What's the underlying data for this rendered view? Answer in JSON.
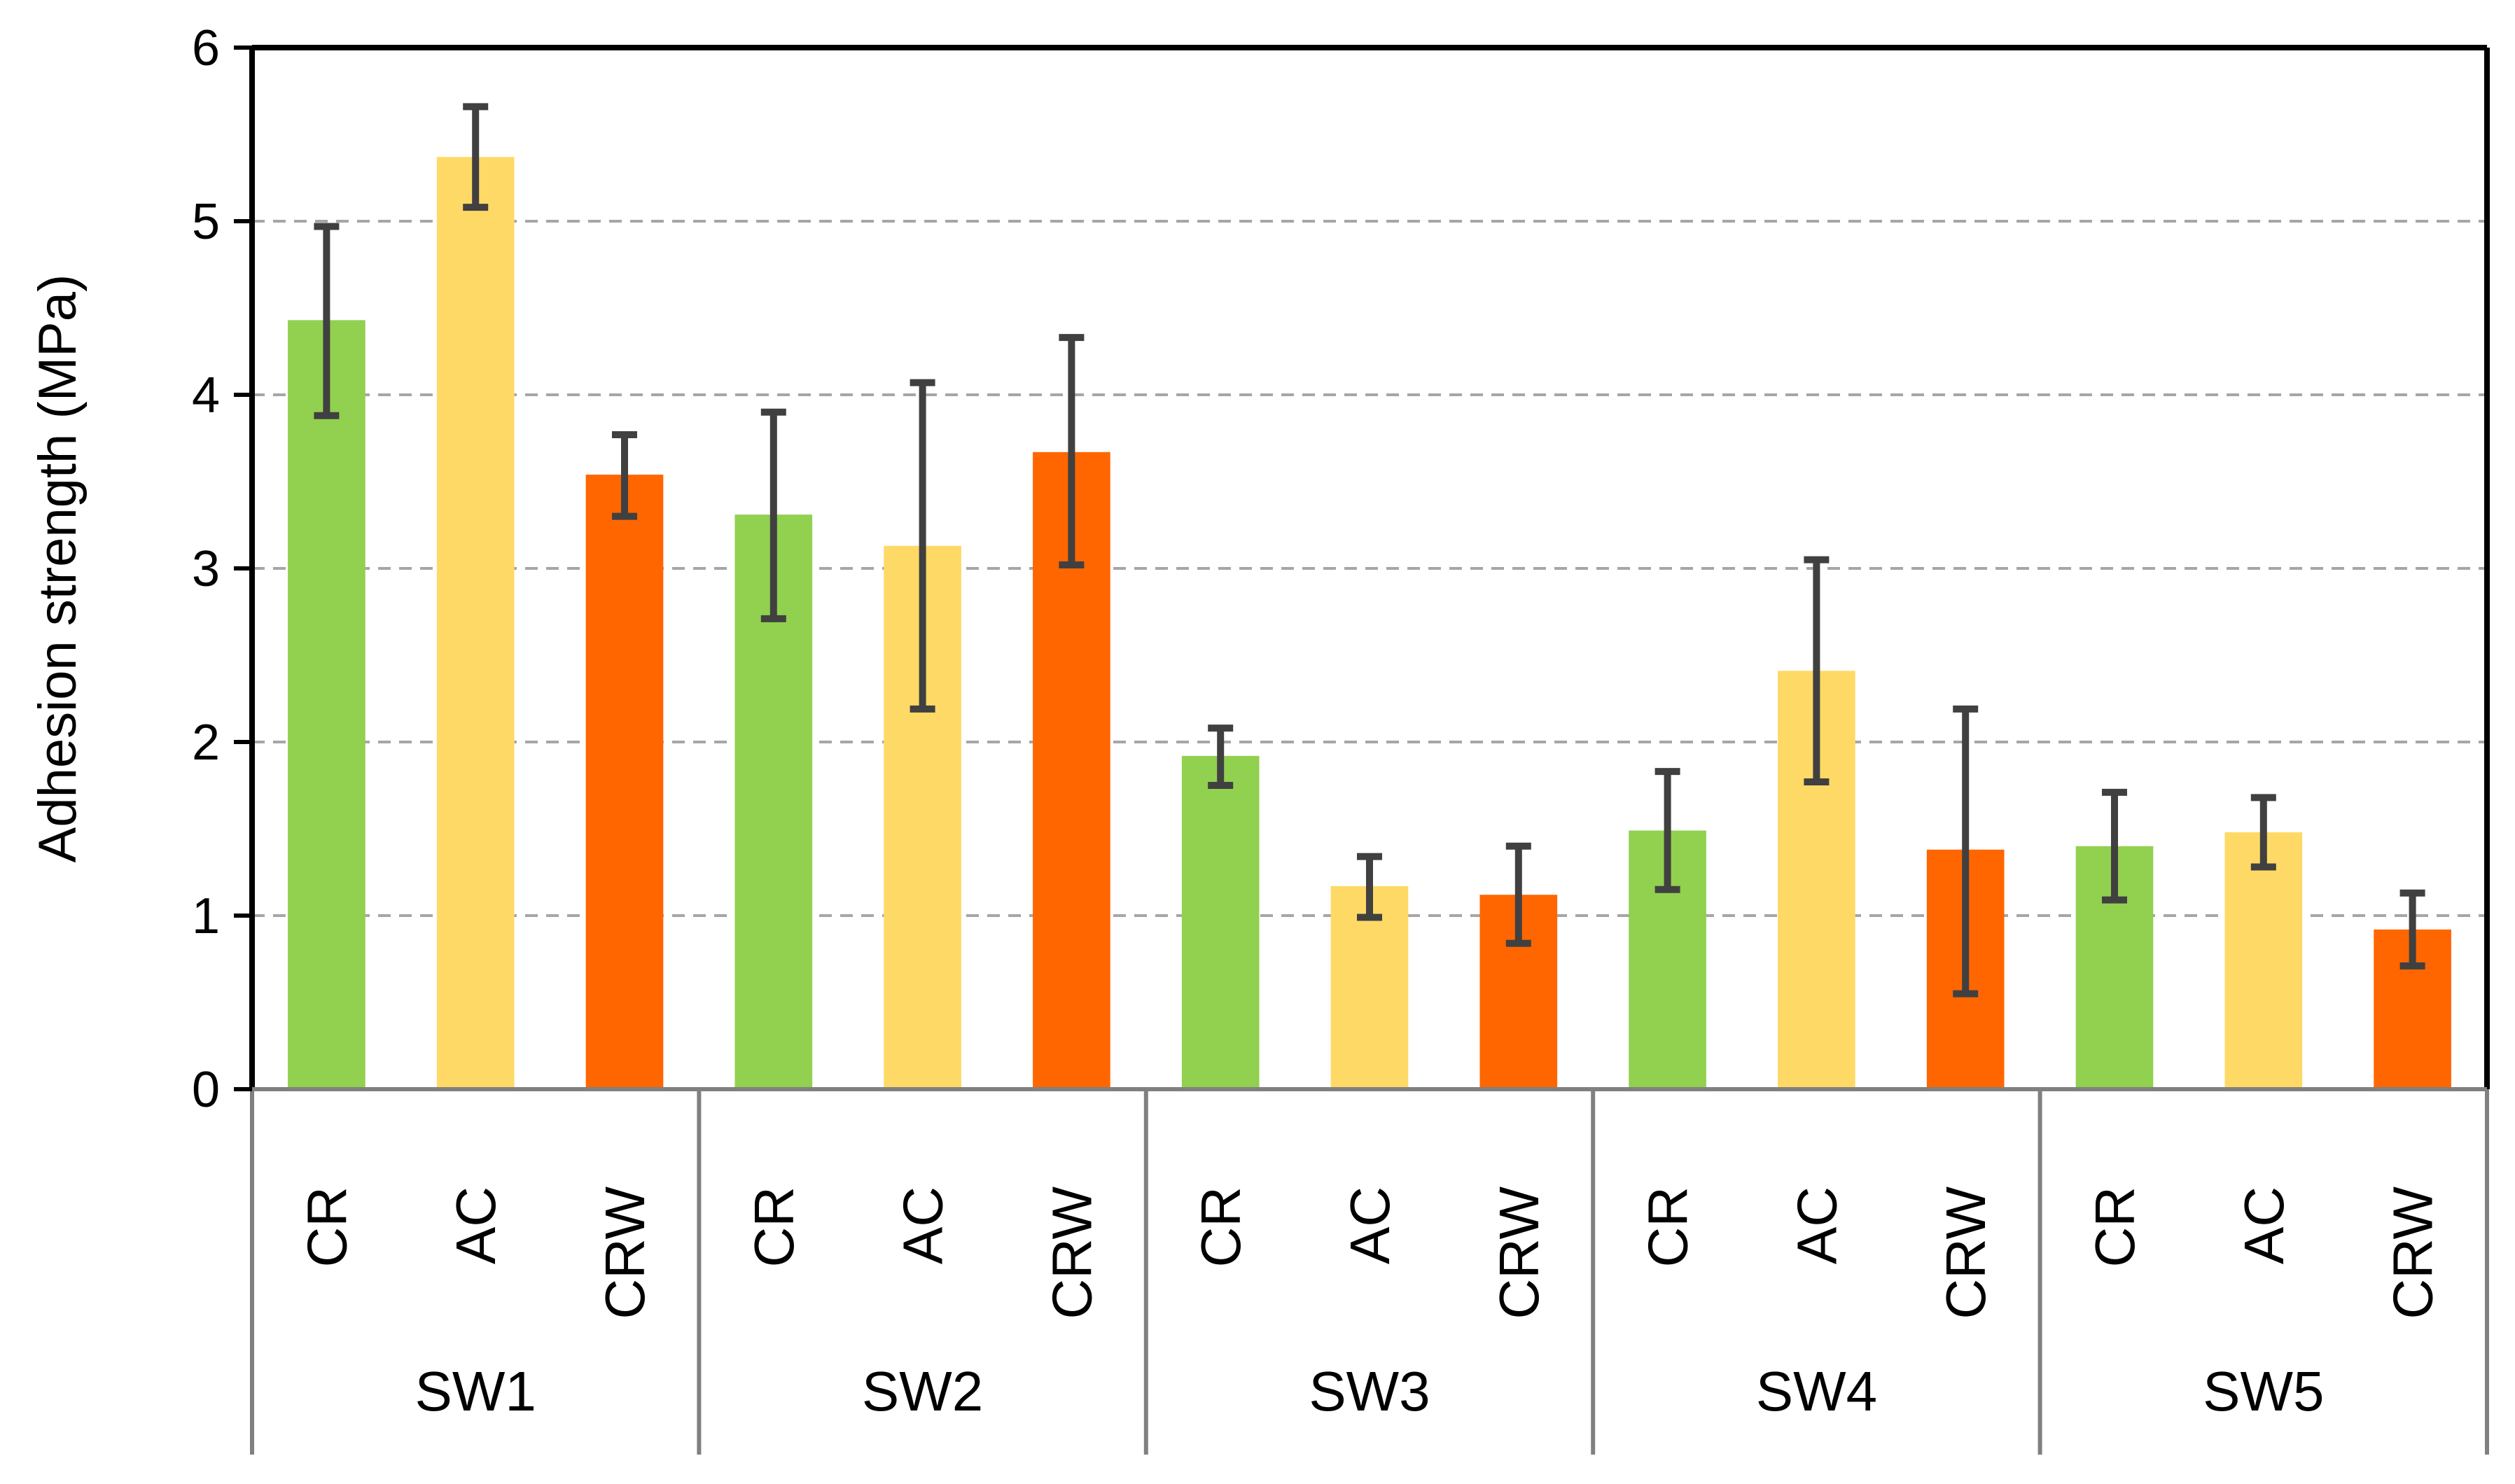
{
  "chart_data": {
    "type": "bar",
    "ylabel": "Adhesion strength (MPa)",
    "ylim": [
      0,
      6
    ],
    "yticks": [
      0,
      1,
      2,
      3,
      4,
      5,
      6
    ],
    "grid": "horizontal dashed",
    "groups": [
      {
        "name": "SW1",
        "bars": [
          {
            "category": "CR",
            "value": 4.43,
            "err_low": 3.88,
            "err_high": 4.97
          },
          {
            "category": "AC",
            "value": 5.37,
            "err_low": 5.08,
            "err_high": 5.66
          },
          {
            "category": "CRW",
            "value": 3.54,
            "err_low": 3.3,
            "err_high": 3.77
          }
        ]
      },
      {
        "name": "SW2",
        "bars": [
          {
            "category": "CR",
            "value": 3.31,
            "err_low": 2.71,
            "err_high": 3.9
          },
          {
            "category": "AC",
            "value": 3.13,
            "err_low": 2.19,
            "err_high": 4.07
          },
          {
            "category": "CRW",
            "value": 3.67,
            "err_low": 3.02,
            "err_high": 4.33
          }
        ]
      },
      {
        "name": "SW3",
        "bars": [
          {
            "category": "CR",
            "value": 1.92,
            "err_low": 1.75,
            "err_high": 2.08
          },
          {
            "category": "AC",
            "value": 1.17,
            "err_low": 0.99,
            "err_high": 1.34
          },
          {
            "category": "CRW",
            "value": 1.12,
            "err_low": 0.84,
            "err_high": 1.4
          }
        ]
      },
      {
        "name": "SW4",
        "bars": [
          {
            "category": "CR",
            "value": 1.49,
            "err_low": 1.15,
            "err_high": 1.83
          },
          {
            "category": "AC",
            "value": 2.41,
            "err_low": 1.77,
            "err_high": 3.05
          },
          {
            "category": "CRW",
            "value": 1.38,
            "err_low": 0.55,
            "err_high": 2.19
          }
        ]
      },
      {
        "name": "SW5",
        "bars": [
          {
            "category": "CR",
            "value": 1.4,
            "err_low": 1.09,
            "err_high": 1.71
          },
          {
            "category": "AC",
            "value": 1.48,
            "err_low": 1.28,
            "err_high": 1.68
          },
          {
            "category": "CRW",
            "value": 0.92,
            "err_low": 0.71,
            "err_high": 1.13
          }
        ]
      }
    ],
    "colors": {
      "CR": "#92d050",
      "AC": "#ffd966",
      "CRW": "#ff6600",
      "error_bar": "#404040",
      "grid": "#a6a6a6",
      "axis": "#000000",
      "category_divider": "#808080"
    }
  }
}
